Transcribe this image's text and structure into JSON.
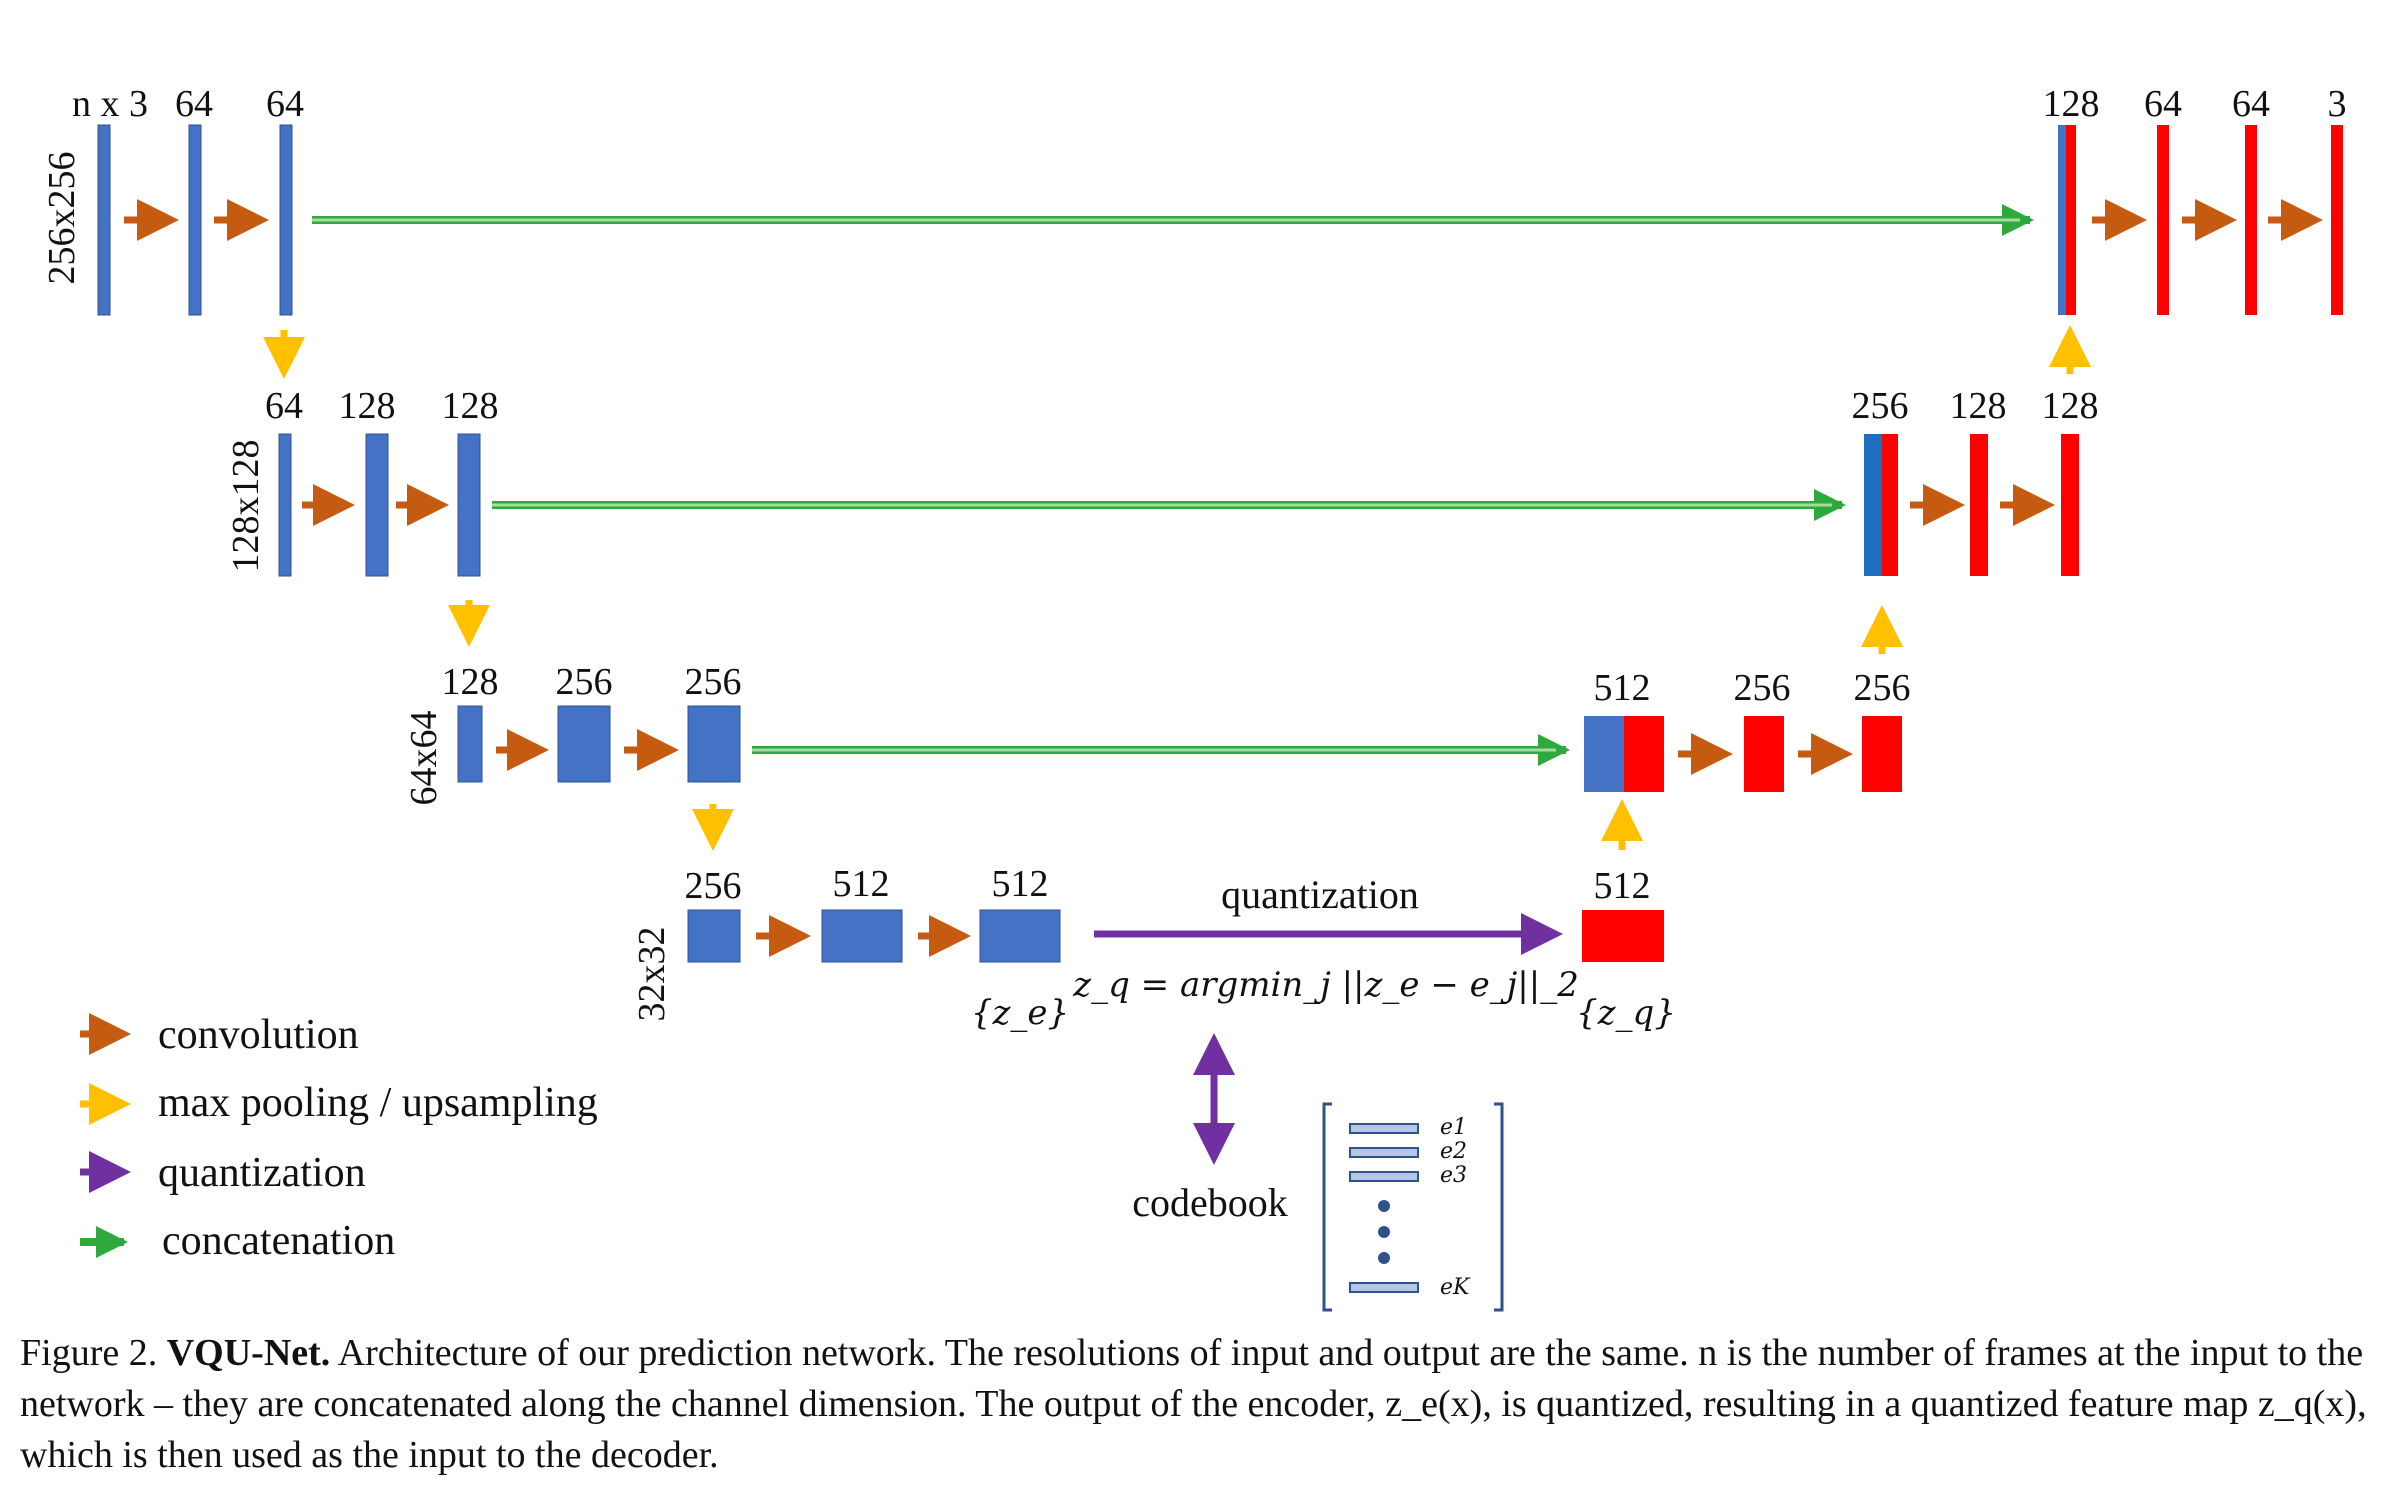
{
  "colors": {
    "encoder": "#4472c4",
    "decoder": "#ff0000",
    "skip_blue": "#1f6fc0",
    "convolution": "#c55a11",
    "pooling": "#ffc000",
    "quantization": "#7030a0",
    "concatenation": "#2eaa3c"
  },
  "levels": {
    "l1": {
      "resolution": "256x256",
      "enc": [
        "n x 3",
        "64",
        "64"
      ],
      "dec": [
        "128",
        "64",
        "64",
        "3"
      ]
    },
    "l2": {
      "resolution": "128x128",
      "enc": [
        "64",
        "128",
        "128"
      ],
      "dec": [
        "256",
        "128",
        "128"
      ]
    },
    "l3": {
      "resolution": "64x64",
      "enc": [
        "128",
        "256",
        "256"
      ],
      "dec": [
        "512",
        "256",
        "256"
      ]
    },
    "l4": {
      "resolution": "32x32",
      "enc": [
        "256",
        "512",
        "512"
      ],
      "dec": [
        "512"
      ]
    }
  },
  "quant": {
    "label": "quantization",
    "ze_label": "{z_e}",
    "zq_label": "{z_q}",
    "formula": "z_q = argmin_j ||z_e − e_j||_2"
  },
  "codebook": {
    "label": "codebook",
    "entries": [
      "e1",
      "e2",
      "e3",
      "eK"
    ]
  },
  "legend": [
    {
      "label": "convolution",
      "color_key": "convolution"
    },
    {
      "label": "max pooling / upsampling",
      "color_key": "pooling"
    },
    {
      "label": "quantization",
      "color_key": "quantization"
    },
    {
      "label": "concatenation",
      "color_key": "concatenation"
    }
  ],
  "caption": {
    "prefix": "Figure 2.",
    "title": "VQU-Net.",
    "text": "Architecture of our prediction network. The resolutions of input and output are the same. n is the number of frames at the input to the network – they are concatenated along the channel dimension. The output of the encoder, z_e(x), is quantized, resulting in a quantized feature map z_q(x), which is then used as the input to the decoder."
  }
}
